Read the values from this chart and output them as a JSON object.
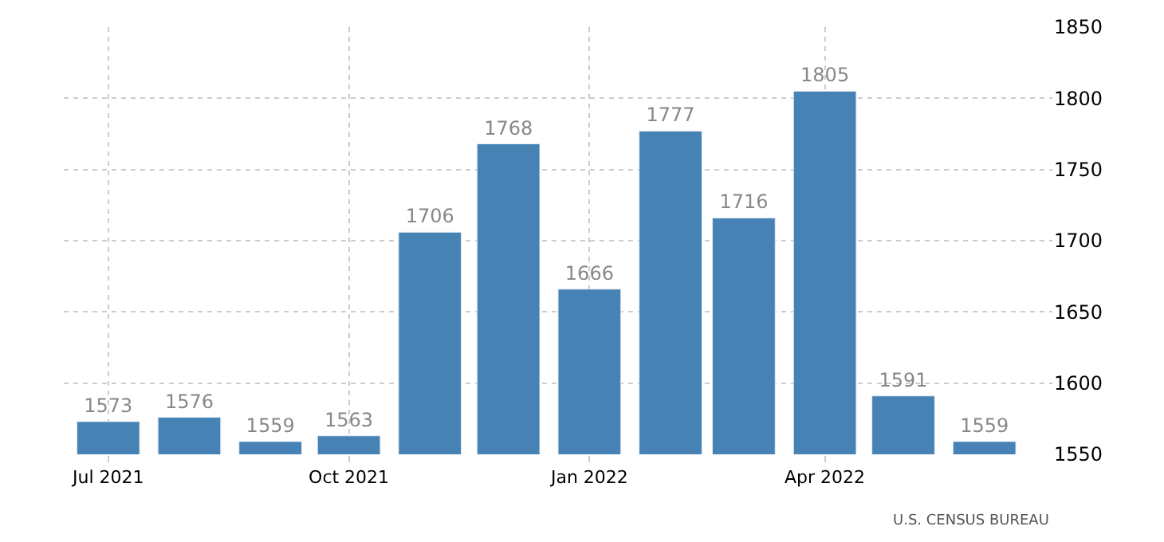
{
  "chart_data": {
    "type": "bar",
    "x": [
      "2021-07",
      "2021-08",
      "2021-09",
      "2021-10",
      "2021-11",
      "2021-12",
      "2022-01",
      "2022-02",
      "2022-03",
      "2022-04",
      "2022-05",
      "2022-06"
    ],
    "values": [
      1573,
      1576,
      1559,
      1563,
      1706,
      1768,
      1666,
      1777,
      1716,
      1805,
      1591,
      1559
    ],
    "color": "#4682b4",
    "xlim": [
      "2021-06-14",
      "2022-06-27"
    ],
    "xticks": [
      {
        "value": "2021-07",
        "label": "Jul 2021"
      },
      {
        "value": "2021-10",
        "label": "Oct 2021"
      },
      {
        "value": "2022-01",
        "label": "Jan 2022"
      },
      {
        "value": "2022-04",
        "label": "Apr 2022"
      }
    ],
    "ylim": [
      1550,
      1850
    ],
    "yticks": [
      1550,
      1600,
      1650,
      1700,
      1750,
      1800,
      1850
    ],
    "grid": true,
    "data_labels": true,
    "annotations": [
      "U.S. CENSUS BUREAU"
    ]
  }
}
